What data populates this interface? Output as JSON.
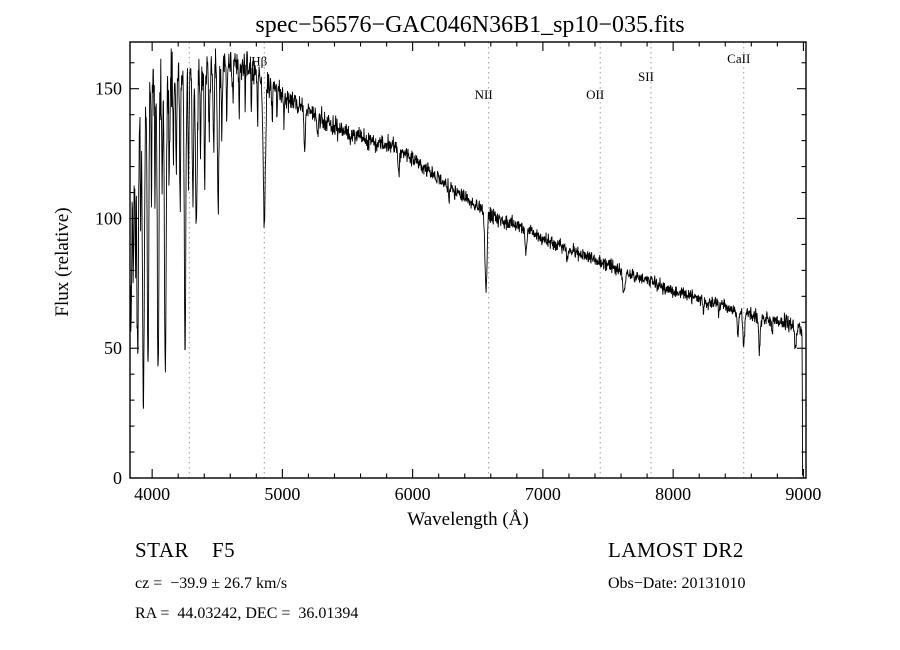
{
  "chart_data": {
    "type": "line",
    "title": "spec−56576−GAC046N36B1_sp10−035.fits",
    "xlabel": "Wavelength (Å)",
    "ylabel": "Flux (relative)",
    "xlim": [
      3830,
      9020
    ],
    "ylim": [
      0,
      168
    ],
    "x_ticks": [
      4000,
      5000,
      6000,
      7000,
      8000,
      9000
    ],
    "y_ticks": [
      0,
      50,
      100,
      150
    ],
    "x_minor_step": 200,
    "y_minor_step": 10,
    "legend": "none",
    "line_color": "#000000",
    "marker_line_color": "#9a9a9a",
    "continuum": [
      [
        3830,
        106
      ],
      [
        3870,
        135
      ],
      [
        3920,
        148
      ],
      [
        3980,
        152
      ],
      [
        4050,
        155
      ],
      [
        4150,
        157
      ],
      [
        4250,
        156
      ],
      [
        4350,
        157
      ],
      [
        4450,
        158
      ],
      [
        4550,
        158
      ],
      [
        4650,
        159
      ],
      [
        4750,
        158
      ],
      [
        4850,
        155
      ],
      [
        4950,
        150
      ],
      [
        5050,
        146
      ],
      [
        5150,
        143
      ],
      [
        5250,
        140
      ],
      [
        5350,
        137
      ],
      [
        5450,
        134
      ],
      [
        5550,
        132
      ],
      [
        5650,
        130
      ],
      [
        5750,
        129
      ],
      [
        5850,
        128
      ],
      [
        5950,
        125
      ],
      [
        6050,
        121
      ],
      [
        6150,
        117
      ],
      [
        6250,
        113
      ],
      [
        6350,
        110
      ],
      [
        6450,
        106
      ],
      [
        6550,
        103
      ],
      [
        6650,
        100
      ],
      [
        6750,
        98
      ],
      [
        6850,
        96
      ],
      [
        6950,
        94
      ],
      [
        7050,
        91
      ],
      [
        7150,
        89
      ],
      [
        7250,
        87
      ],
      [
        7350,
        85
      ],
      [
        7450,
        83
      ],
      [
        7550,
        81
      ],
      [
        7650,
        79
      ],
      [
        7750,
        77
      ],
      [
        7850,
        75
      ],
      [
        7950,
        73
      ],
      [
        8050,
        71
      ],
      [
        8150,
        70
      ],
      [
        8250,
        68
      ],
      [
        8350,
        67
      ],
      [
        8450,
        65
      ],
      [
        8550,
        64
      ],
      [
        8650,
        62
      ],
      [
        8750,
        61
      ],
      [
        8850,
        60
      ],
      [
        8950,
        58
      ],
      [
        9020,
        56
      ]
    ],
    "absorption_lines": [
      [
        3838,
        5,
        55
      ],
      [
        3856,
        4,
        40
      ],
      [
        3872,
        4,
        50
      ],
      [
        3889,
        6,
        95
      ],
      [
        3912,
        4,
        45
      ],
      [
        3933,
        7,
        122
      ],
      [
        3968,
        6,
        104
      ],
      [
        3995,
        4,
        42
      ],
      [
        4022,
        4,
        38
      ],
      [
        4046,
        6,
        114
      ],
      [
        4077,
        4,
        48
      ],
      [
        4101,
        7,
        118
      ],
      [
        4132,
        4,
        42
      ],
      [
        4163,
        4,
        32
      ],
      [
        4185,
        4,
        38
      ],
      [
        4215,
        4,
        50
      ],
      [
        4253,
        6,
        110
      ],
      [
        4280,
        4,
        42
      ],
      [
        4312,
        5,
        50
      ],
      [
        4340,
        7,
        62
      ],
      [
        4372,
        4,
        32
      ],
      [
        4404,
        4,
        46
      ],
      [
        4438,
        4,
        28
      ],
      [
        4472,
        4,
        32
      ],
      [
        4507,
        6,
        54
      ],
      [
        4535,
        4,
        24
      ],
      [
        4572,
        3,
        18
      ],
      [
        4620,
        3,
        16
      ],
      [
        4668,
        3,
        20
      ],
      [
        4715,
        3,
        14
      ],
      [
        4762,
        3,
        16
      ],
      [
        4810,
        3,
        18
      ],
      [
        4861,
        9,
        57
      ],
      [
        4922,
        3,
        13
      ],
      [
        4960,
        3,
        10
      ],
      [
        5012,
        3,
        12
      ],
      [
        5170,
        5,
        16
      ],
      [
        5270,
        4,
        10
      ],
      [
        5893,
        6,
        9
      ],
      [
        6280,
        4,
        5
      ],
      [
        6563,
        8,
        31
      ],
      [
        6870,
        7,
        8
      ],
      [
        7186,
        5,
        5
      ],
      [
        7620,
        8,
        9
      ],
      [
        8230,
        5,
        4
      ],
      [
        8350,
        4,
        4
      ],
      [
        8498,
        6,
        9
      ],
      [
        8542,
        7,
        13
      ],
      [
        8662,
        6,
        12
      ],
      [
        8760,
        4,
        5
      ],
      [
        8940,
        5,
        9
      ]
    ],
    "noise_sigma": [
      [
        3830,
        6.5
      ],
      [
        4000,
        6
      ],
      [
        4250,
        5
      ],
      [
        4500,
        3.5
      ],
      [
        4800,
        2.6
      ],
      [
        5100,
        2.1
      ],
      [
        5500,
        1.8
      ],
      [
        6000,
        1.6
      ],
      [
        6500,
        1.5
      ],
      [
        7000,
        1.35
      ],
      [
        7500,
        1.3
      ],
      [
        8000,
        1.25
      ],
      [
        8500,
        1.3
      ],
      [
        9000,
        1.6
      ]
    ],
    "noise_seed": 42,
    "cutoff": {
      "wavelength": 8993,
      "drop_to": 0
    },
    "spectral_lines": [
      {
        "label": "",
        "wavelength": 4285,
        "label_flux": 0
      },
      {
        "label": "Hβ",
        "wavelength": 4861,
        "label_flux": 159
      },
      {
        "label": "NII",
        "wavelength": 6584,
        "label_flux": 146
      },
      {
        "label": "OII",
        "wavelength": 7440,
        "label_flux": 146
      },
      {
        "label": "SII",
        "wavelength": 7830,
        "label_flux": 153
      },
      {
        "label": "CaII",
        "wavelength": 8542,
        "label_flux": 160
      }
    ]
  },
  "annotations": {
    "object_type": "STAR    F5",
    "survey": "LAMOST DR2",
    "cz": "cz =  −39.9 ± 26.7 km/s",
    "obs_date": "Obs−Date: 20131010",
    "ra_dec": "RA =  44.03242, DEC =  36.01394"
  }
}
